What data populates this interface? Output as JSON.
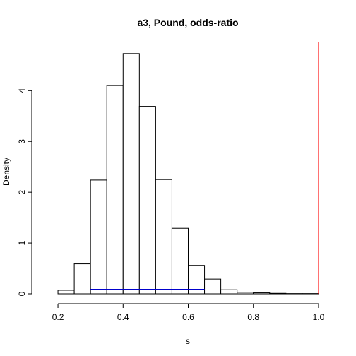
{
  "chart_data": {
    "type": "bar",
    "title": "a3, Pound, odds-ratio",
    "xlabel": "s",
    "ylabel": "Density",
    "xlim": [
      0.15,
      1.05
    ],
    "ylim": [
      0,
      4.95
    ],
    "x_ticks": [
      0.2,
      0.4,
      0.6,
      0.8,
      1.0
    ],
    "x_tick_labels": [
      "0.2",
      "0.4",
      "0.6",
      "0.8",
      "1.0"
    ],
    "y_ticks": [
      0,
      1,
      2,
      3,
      4
    ],
    "y_tick_labels": [
      "0",
      "1",
      "2",
      "3",
      "4"
    ],
    "bins": [
      [
        0.15,
        0.2,
        0.0
      ],
      [
        0.2,
        0.25,
        0.07
      ],
      [
        0.25,
        0.3,
        0.59
      ],
      [
        0.3,
        0.35,
        2.24
      ],
      [
        0.35,
        0.4,
        4.1
      ],
      [
        0.4,
        0.45,
        4.73
      ],
      [
        0.45,
        0.5,
        3.69
      ],
      [
        0.5,
        0.55,
        2.25
      ],
      [
        0.55,
        0.6,
        1.29
      ],
      [
        0.6,
        0.65,
        0.56
      ],
      [
        0.65,
        0.7,
        0.29
      ],
      [
        0.7,
        0.75,
        0.08
      ],
      [
        0.75,
        0.8,
        0.03
      ],
      [
        0.8,
        0.85,
        0.02
      ],
      [
        0.85,
        0.9,
        0.01
      ],
      [
        0.9,
        0.95,
        0.005
      ],
      [
        0.95,
        1.0,
        0.005
      ],
      [
        1.0,
        1.05,
        0.0
      ]
    ],
    "vline": {
      "x": 1.0,
      "color": "#ff0000"
    },
    "interval": {
      "x0": 0.3,
      "x1": 0.65,
      "y": 0.09,
      "color": "#0000cc"
    },
    "grid": false,
    "bar_fill": "#ffffff",
    "bar_stroke": "#000000"
  }
}
